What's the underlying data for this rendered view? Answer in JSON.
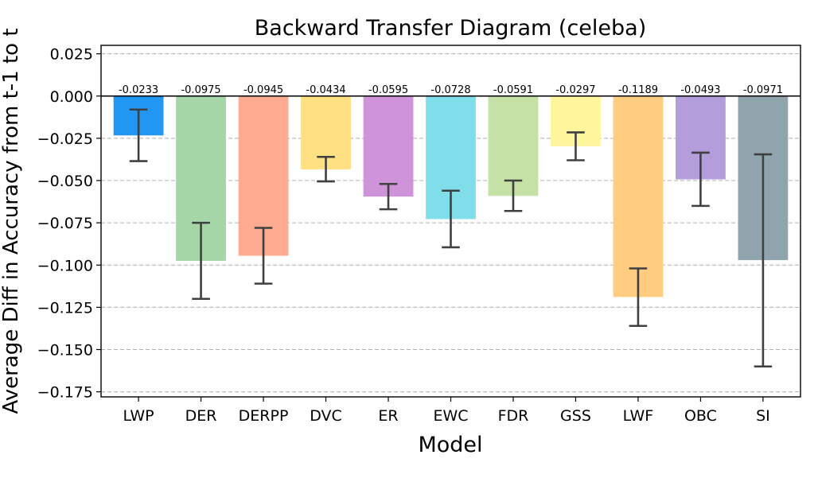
{
  "chart_data": {
    "type": "bar",
    "title": "Backward Transfer Diagram (celeba)",
    "xlabel": "Model",
    "ylabel": "Average Diff in Accuracy from t-1 to t",
    "categories": [
      "LWP",
      "DER",
      "DERPP",
      "DVC",
      "ER",
      "EWC",
      "FDR",
      "GSS",
      "LWF",
      "OBC",
      "SI"
    ],
    "values": [
      -0.0233,
      -0.0975,
      -0.0945,
      -0.0434,
      -0.0595,
      -0.0728,
      -0.0591,
      -0.0297,
      -0.1189,
      -0.0493,
      -0.0971
    ],
    "value_labels": [
      "-0.0233",
      "-0.0975",
      "-0.0945",
      "-0.0434",
      "-0.0595",
      "-0.0728",
      "-0.0591",
      "-0.0297",
      "-0.1189",
      "-0.0493",
      "-0.0971"
    ],
    "error_low": [
      -0.0385,
      -0.12,
      -0.111,
      -0.0505,
      -0.067,
      -0.0895,
      -0.068,
      -0.038,
      -0.136,
      -0.065,
      -0.16
    ],
    "error_high": [
      -0.008,
      -0.075,
      -0.078,
      -0.036,
      -0.052,
      -0.056,
      -0.05,
      -0.0215,
      -0.102,
      -0.0335,
      -0.0345
    ],
    "colors": [
      "#2196f3",
      "#a5d6a7",
      "#ffab91",
      "#ffe082",
      "#ce93d8",
      "#80deea",
      "#c5e1a5",
      "#fff59d",
      "#ffcc80",
      "#b39ddb",
      "#90a4ae"
    ],
    "yticks": [
      0.025,
      0.0,
      -0.025,
      -0.05,
      -0.075,
      -0.1,
      -0.125,
      -0.15,
      -0.175
    ],
    "ytick_labels": [
      "0.025",
      "0.000",
      "−0.025",
      "−0.050",
      "−0.075",
      "−0.100",
      "−0.125",
      "−0.150",
      "−0.175"
    ],
    "ylim": [
      -0.178,
      0.03
    ],
    "grid": "y-dashed",
    "zero_line": true
  }
}
